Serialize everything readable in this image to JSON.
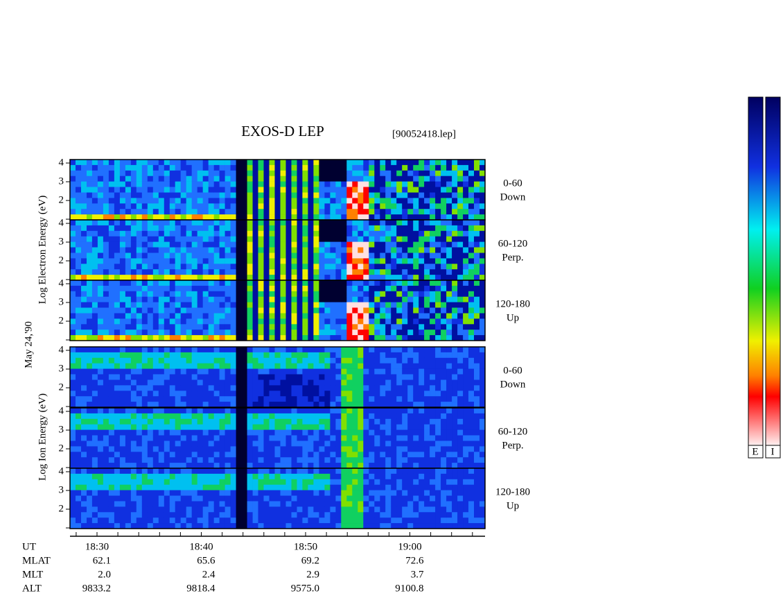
{
  "title": "EXOS-D LEP",
  "file": "[90052418.lep]",
  "date": "May 24,'90",
  "electron": {
    "ylabel": "Log Electron Energy (eV)",
    "panels": [
      [
        "0-60",
        "Down"
      ],
      [
        "60-120",
        "Perp."
      ],
      [
        "120-180",
        "Up"
      ]
    ]
  },
  "ion": {
    "ylabel": "Log Ion Energy (eV)",
    "panels": [
      [
        "0-60",
        "Down"
      ],
      [
        "60-120",
        "Perp."
      ],
      [
        "120-180",
        "Up"
      ]
    ]
  },
  "ytick_labels": [
    "2",
    "3",
    "4"
  ],
  "time_labels": [
    "18:30",
    "18:40",
    "18:50",
    "19:00"
  ],
  "ephemeris": [
    [
      "UT"
    ],
    [
      "MLAT",
      "62.1",
      "65.6",
      "69.2",
      "72.6"
    ],
    [
      "MLT",
      "2.0",
      "2.4",
      "2.9",
      "3.7"
    ],
    [
      "ALT",
      "9833.2",
      "9818.4",
      "9575.0",
      "9100.8"
    ]
  ],
  "colorbar_labels": [
    "E",
    "I"
  ]
}
